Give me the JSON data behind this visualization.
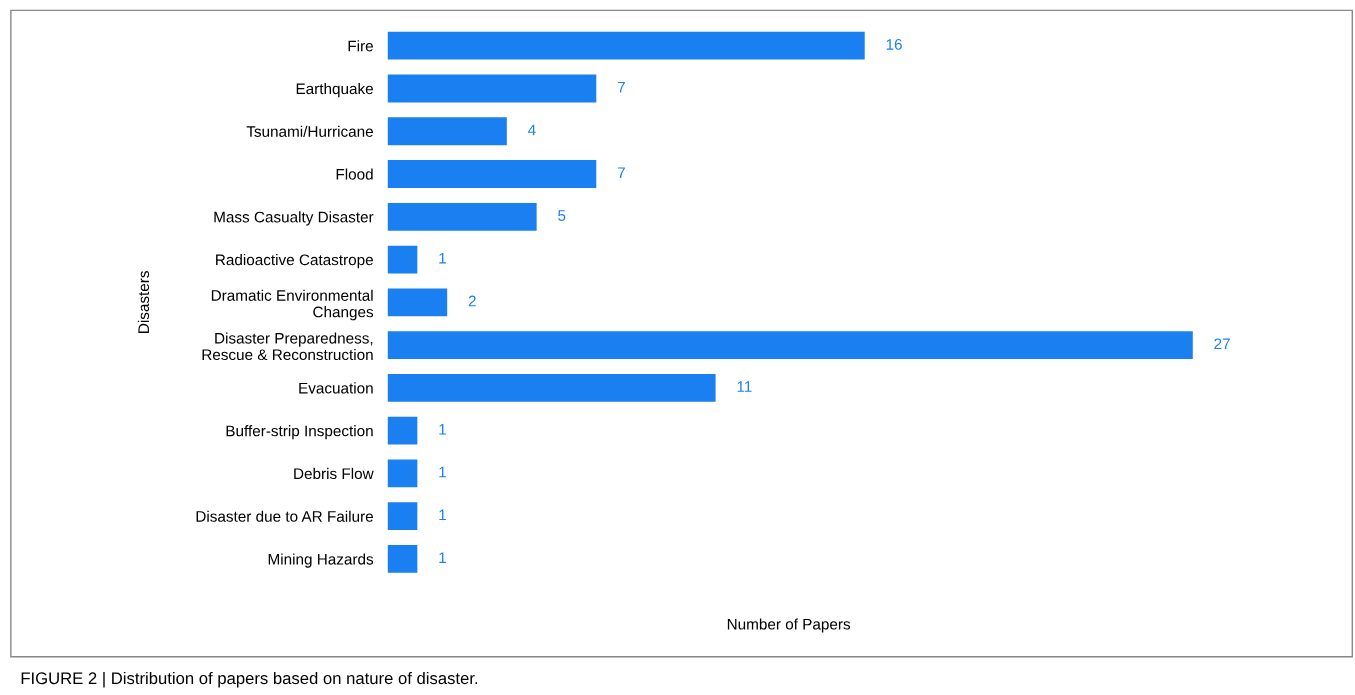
{
  "chart_data": {
    "type": "bar",
    "orientation": "horizontal",
    "xlabel": "Number of Papers",
    "ylabel": "Disasters",
    "categories": [
      "Fire",
      "Earthquake",
      "Tsunami/Hurricane",
      "Flood",
      "Mass Casualty Disaster",
      "Radioactive Catastrope",
      "Dramatic Environmental\nChanges",
      "Disaster Preparedness,\nRescue & Reconstruction",
      "Evacuation",
      "Buffer-strip Inspection",
      "Debris Flow",
      "Disaster due to AR Failure",
      "Mining Hazards"
    ],
    "values": [
      16,
      7,
      4,
      7,
      5,
      1,
      2,
      27,
      11,
      1,
      1,
      1,
      1
    ],
    "color": "#1a7ff0",
    "data_labels": true,
    "tick_labels": "y",
    "grid": false,
    "annotations": [
      "FIGURE 2 | Distribution of papers based on nature of disaster."
    ]
  }
}
